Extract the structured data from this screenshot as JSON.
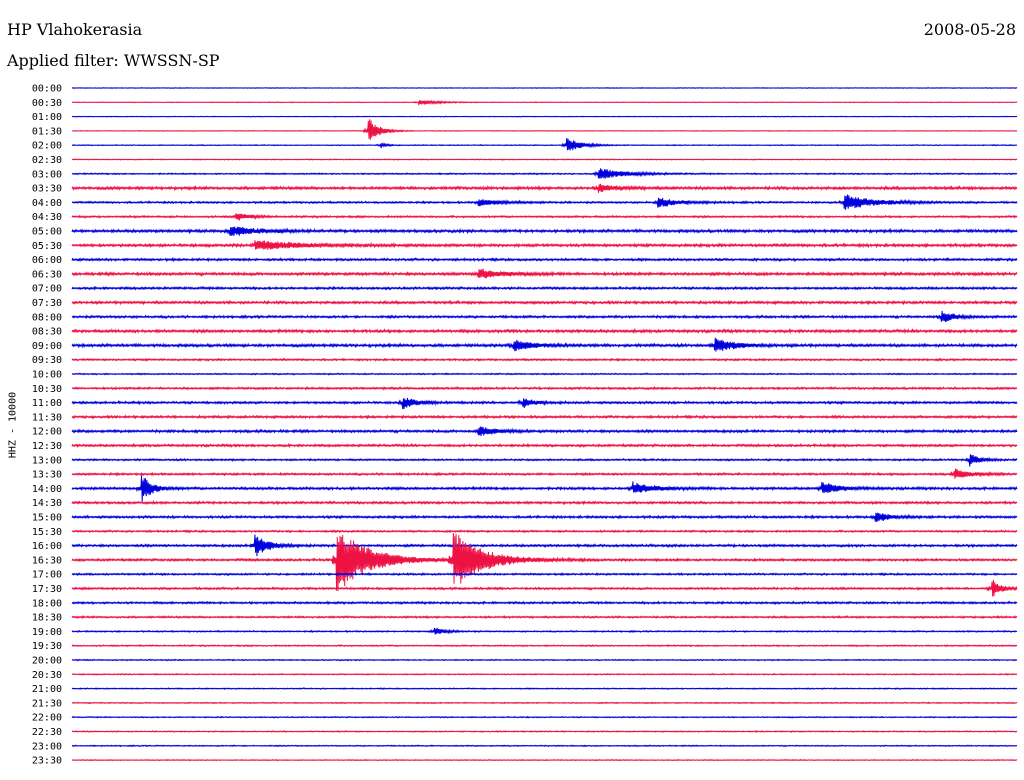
{
  "header": {
    "station": "HP Vlahokerasia",
    "date": "2008-05-28",
    "filter": "Applied filter: WWSSN-SP"
  },
  "axis": {
    "channel_label": "HHZ - 10000"
  },
  "colors": {
    "trace_a": "#0000dd",
    "trace_b": "#ee1144",
    "text": "#000000"
  },
  "chart_data": {
    "type": "line",
    "title": "HP Vlahokerasia",
    "subtitle": "Applied filter: WWSSN-SP",
    "date": "2008-05-28",
    "ylabel": "HHZ - 10000",
    "rows": [
      "00:00",
      "00:30",
      "01:00",
      "01:30",
      "02:00",
      "02:30",
      "03:00",
      "03:30",
      "04:00",
      "04:30",
      "05:00",
      "05:30",
      "06:00",
      "06:30",
      "07:00",
      "07:30",
      "08:00",
      "08:30",
      "09:00",
      "09:30",
      "10:00",
      "10:30",
      "11:00",
      "11:30",
      "12:00",
      "12:30",
      "13:00",
      "13:30",
      "14:00",
      "14:30",
      "15:00",
      "15:30",
      "16:00",
      "16:30",
      "17:00",
      "17:30",
      "18:00",
      "18:30",
      "19:00",
      "19:30",
      "20:00",
      "20:30",
      "21:00",
      "21:30",
      "22:00",
      "22:30",
      "23:00",
      "23:30"
    ],
    "row_minutes": 30,
    "row_noise": [
      0.3,
      0.3,
      0.3,
      0.3,
      0.4,
      0.4,
      0.6,
      1.2,
      0.8,
      0.8,
      1.2,
      1.2,
      1.0,
      1.2,
      1.0,
      1.1,
      1.0,
      1.2,
      1.2,
      0.8,
      0.6,
      0.9,
      1.0,
      1.0,
      1.1,
      1.0,
      0.8,
      0.9,
      1.1,
      1.0,
      1.0,
      0.8,
      1.0,
      1.0,
      0.8,
      0.9,
      0.9,
      0.8,
      0.6,
      0.6,
      0.5,
      0.5,
      0.5,
      0.5,
      0.5,
      0.5,
      0.5,
      0.4
    ],
    "events": [
      {
        "row": 1,
        "minute": 11.0,
        "amplitude": 3,
        "duration": 1.0
      },
      {
        "row": 3,
        "minute": 9.4,
        "amplitude": 14,
        "duration": 0.6
      },
      {
        "row": 4,
        "minute": 15.7,
        "amplitude": 8,
        "duration": 0.8
      },
      {
        "row": 4,
        "minute": 9.8,
        "amplitude": 3,
        "duration": 0.3
      },
      {
        "row": 6,
        "minute": 16.7,
        "amplitude": 6,
        "duration": 1.5
      },
      {
        "row": 7,
        "minute": 16.7,
        "amplitude": 4,
        "duration": 1.0
      },
      {
        "row": 8,
        "minute": 24.5,
        "amplitude": 8,
        "duration": 1.8
      },
      {
        "row": 8,
        "minute": 18.6,
        "amplitude": 5,
        "duration": 1.2
      },
      {
        "row": 8,
        "minute": 12.9,
        "amplitude": 4,
        "duration": 1.2
      },
      {
        "row": 9,
        "minute": 5.2,
        "amplitude": 4,
        "duration": 0.8
      },
      {
        "row": 10,
        "minute": 5.0,
        "amplitude": 5,
        "duration": 1.5
      },
      {
        "row": 11,
        "minute": 5.8,
        "amplitude": 5,
        "duration": 2.5
      },
      {
        "row": 13,
        "minute": 12.9,
        "amplitude": 5,
        "duration": 1.5
      },
      {
        "row": 16,
        "minute": 27.6,
        "amplitude": 6,
        "duration": 0.8
      },
      {
        "row": 18,
        "minute": 14.0,
        "amplitude": 6,
        "duration": 1.2
      },
      {
        "row": 18,
        "minute": 20.4,
        "amplitude": 7,
        "duration": 1.2
      },
      {
        "row": 22,
        "minute": 10.5,
        "amplitude": 6,
        "duration": 0.8
      },
      {
        "row": 22,
        "minute": 14.3,
        "amplitude": 6,
        "duration": 0.6
      },
      {
        "row": 24,
        "minute": 12.9,
        "amplitude": 5,
        "duration": 1.0
      },
      {
        "row": 26,
        "minute": 28.5,
        "amplitude": 6,
        "duration": 0.6
      },
      {
        "row": 27,
        "minute": 28.0,
        "amplitude": 5,
        "duration": 1.0
      },
      {
        "row": 28,
        "minute": 2.2,
        "amplitude": 14,
        "duration": 0.6
      },
      {
        "row": 28,
        "minute": 17.8,
        "amplitude": 6,
        "duration": 1.2
      },
      {
        "row": 28,
        "minute": 23.8,
        "amplitude": 6,
        "duration": 1.0
      },
      {
        "row": 30,
        "minute": 25.5,
        "amplitude": 6,
        "duration": 0.8
      },
      {
        "row": 32,
        "minute": 5.8,
        "amplitude": 12,
        "duration": 0.8
      },
      {
        "row": 33,
        "minute": 8.4,
        "amplitude": 36,
        "duration": 1.8
      },
      {
        "row": 33,
        "minute": 12.1,
        "amplitude": 30,
        "duration": 1.8
      },
      {
        "row": 35,
        "minute": 29.2,
        "amplitude": 10,
        "duration": 0.5
      },
      {
        "row": 38,
        "minute": 11.5,
        "amplitude": 4,
        "duration": 0.6
      }
    ]
  }
}
